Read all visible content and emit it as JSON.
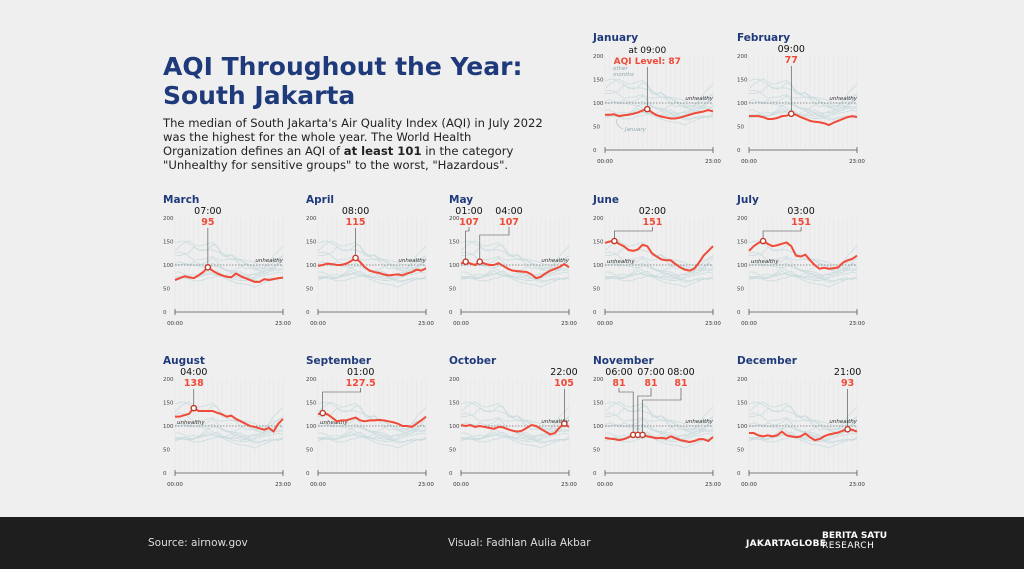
{
  "title": "AQI Throughout the Year: South Jakarta",
  "description": {
    "part1": "The median of South Jakarta's Air Quality Index (AQI) in July 2022 was the highest for the whole year. The World Health Organization defines an AQI of ",
    "bold": "at least 101",
    "part2": " in the category \"Unhealthy for sensitive groups\" to the worst, \"Hazardous\"."
  },
  "footer": {
    "source": "Source: airnow.gov",
    "visual": "Visual: Fadhlan Aulia Akbar",
    "logo_jakartaglobe": "JAKARTAGLOBE",
    "logo_beritasatu_1": "BERITA SATU",
    "logo_beritasatu_2": "RESEARCH"
  },
  "chart_data": {
    "type": "line",
    "xlabel": "",
    "ylabel": "",
    "x_ticks": [
      "00:00",
      "23:00"
    ],
    "y_ticks": [
      0,
      50,
      100,
      150,
      200
    ],
    "ylim": [
      0,
      200
    ],
    "threshold": {
      "value": 100,
      "label": "unhealthy"
    },
    "january_annotations": {
      "other": "other months",
      "self": "January",
      "time_prefix": "at ",
      "value_prefix": "AQI Level: "
    },
    "colors": {
      "highlight": "#f04a38",
      "others": "#c7dadd",
      "title": "#1f3a7a",
      "threshold": "#777777"
    },
    "hours": [
      0,
      1,
      2,
      3,
      4,
      5,
      6,
      7,
      8,
      9,
      10,
      11,
      12,
      13,
      14,
      15,
      16,
      17,
      18,
      19,
      20,
      21,
      22,
      23
    ],
    "months": [
      {
        "name": "January",
        "peaks": [
          {
            "time": "09:00",
            "value": "87"
          }
        ],
        "values": [
          75,
          75,
          76,
          72,
          74,
          75,
          77,
          80,
          84,
          87,
          80,
          74,
          71,
          69,
          67,
          67,
          69,
          72,
          75,
          78,
          80,
          82,
          85,
          82
        ]
      },
      {
        "name": "February",
        "peaks": [
          {
            "time": "09:00",
            "value": "77"
          }
        ],
        "values": [
          72,
          72,
          72,
          70,
          66,
          66,
          68,
          72,
          73,
          77,
          75,
          70,
          66,
          62,
          60,
          59,
          57,
          53,
          58,
          62,
          66,
          70,
          72,
          70
        ]
      },
      {
        "name": "March",
        "peaks": [
          {
            "time": "07:00",
            "value": "95"
          }
        ],
        "values": [
          68,
          72,
          76,
          74,
          72,
          78,
          85,
          95,
          88,
          82,
          78,
          75,
          74,
          82,
          76,
          72,
          68,
          64,
          64,
          70,
          68,
          70,
          72,
          73
        ]
      },
      {
        "name": "April",
        "peaks": [
          {
            "time": "08:00",
            "value": "115"
          }
        ],
        "values": [
          98,
          100,
          103,
          102,
          100,
          100,
          103,
          108,
          115,
          106,
          95,
          88,
          85,
          83,
          80,
          78,
          79,
          80,
          78,
          82,
          85,
          90,
          88,
          93
        ]
      },
      {
        "name": "May",
        "peaks": [
          {
            "time": "01:00",
            "value": "107"
          },
          {
            "time": "04:00",
            "value": "107"
          }
        ],
        "values": [
          103,
          107,
          103,
          100,
          107,
          103,
          100,
          100,
          104,
          98,
          92,
          88,
          87,
          86,
          85,
          80,
          72,
          75,
          82,
          88,
          92,
          96,
          102,
          95
        ]
      },
      {
        "name": "June",
        "peaks": [
          {
            "time": "02:00",
            "value": "151"
          }
        ],
        "values": [
          147,
          150,
          151,
          145,
          140,
          132,
          130,
          133,
          143,
          140,
          125,
          118,
          112,
          110,
          110,
          102,
          95,
          90,
          88,
          92,
          105,
          120,
          130,
          140
        ]
      },
      {
        "name": "July",
        "peaks": [
          {
            "time": "03:00",
            "value": "151"
          }
        ],
        "values": [
          130,
          140,
          147,
          151,
          145,
          140,
          142,
          145,
          148,
          140,
          120,
          118,
          122,
          110,
          100,
          92,
          94,
          92,
          93,
          95,
          105,
          110,
          113,
          120
        ]
      },
      {
        "name": "August",
        "peaks": [
          {
            "time": "04:00",
            "value": "138"
          }
        ],
        "values": [
          120,
          120,
          123,
          126,
          138,
          132,
          132,
          132,
          132,
          128,
          125,
          120,
          122,
          115,
          110,
          105,
          100,
          98,
          95,
          92,
          96,
          88,
          105,
          115
        ]
      },
      {
        "name": "September",
        "peaks": [
          {
            "time": "01:00",
            "value": "127.5"
          }
        ],
        "values": [
          125,
          127.5,
          125,
          118,
          110,
          112,
          112,
          115,
          118,
          112,
          110,
          112,
          112,
          113,
          112,
          110,
          108,
          105,
          100,
          100,
          98,
          105,
          112,
          120
        ]
      },
      {
        "name": "October",
        "peaks": [
          {
            "time": "22:00",
            "value": "105"
          }
        ],
        "values": [
          102,
          100,
          102,
          98,
          100,
          98,
          96,
          94,
          98,
          97,
          93,
          90,
          88,
          90,
          96,
          102,
          100,
          94,
          88,
          82,
          85,
          97,
          105,
          98
        ]
      },
      {
        "name": "November",
        "peaks": [
          {
            "time": "06:00",
            "value": "81"
          },
          {
            "time": "07:00",
            "value": "81"
          },
          {
            "time": "08:00",
            "value": "81"
          }
        ],
        "values": [
          75,
          73,
          72,
          70,
          72,
          76,
          81,
          81,
          81,
          78,
          76,
          74,
          75,
          73,
          78,
          74,
          70,
          68,
          66,
          68,
          72,
          72,
          68,
          77
        ]
      },
      {
        "name": "December",
        "peaks": [
          {
            "time": "21:00",
            "value": "93"
          }
        ],
        "values": [
          85,
          85,
          80,
          78,
          80,
          78,
          80,
          88,
          80,
          78,
          76,
          78,
          84,
          76,
          70,
          72,
          78,
          82,
          84,
          86,
          90,
          93,
          92,
          88
        ]
      }
    ]
  }
}
